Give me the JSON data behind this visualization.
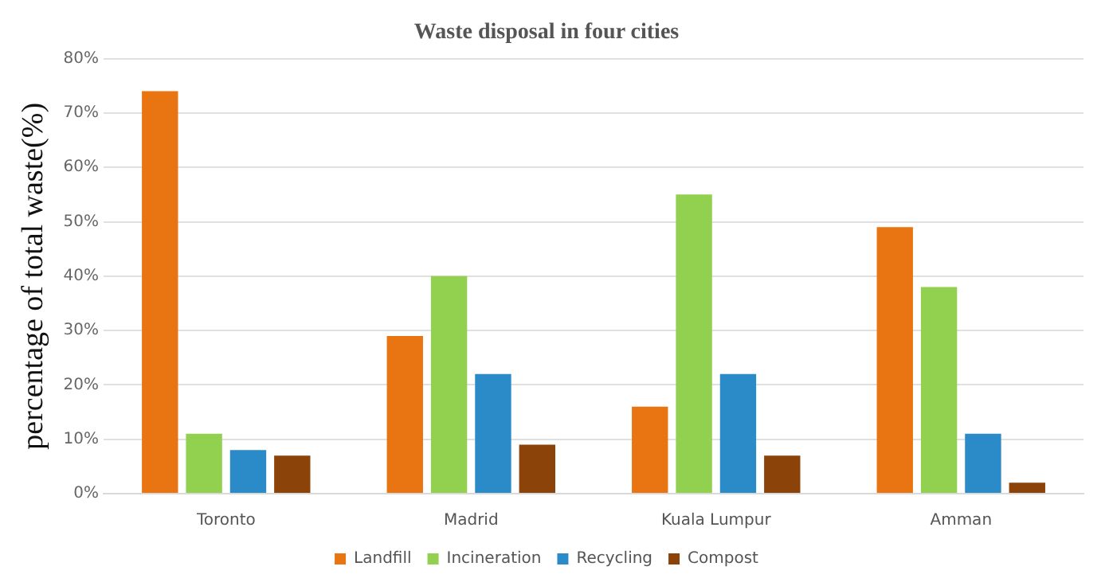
{
  "chart_data": {
    "type": "bar",
    "title": "Waste disposal in four cities",
    "ylabel": "percentage of total waste(%)",
    "categories": [
      "Toronto",
      "Madrid",
      "Kuala Lumpur",
      "Amman"
    ],
    "series": [
      {
        "name": "Landfill",
        "color": "#e87511",
        "values": [
          74,
          29,
          16,
          49
        ]
      },
      {
        "name": "Incineration",
        "color": "#92d050",
        "values": [
          11,
          40,
          55,
          38
        ]
      },
      {
        "name": "Recycling",
        "color": "#2b8bc8",
        "values": [
          8,
          22,
          22,
          11
        ]
      },
      {
        "name": "Compost",
        "color": "#8b4309",
        "values": [
          7,
          9,
          7,
          2
        ]
      }
    ],
    "ylim": [
      0,
      80
    ],
    "yticks": [
      {
        "value": 0,
        "label": "0%"
      },
      {
        "value": 10,
        "label": "10%"
      },
      {
        "value": 20,
        "label": "20%"
      },
      {
        "value": 30,
        "label": "30%"
      },
      {
        "value": 40,
        "label": "40%"
      },
      {
        "value": 50,
        "label": "50%"
      },
      {
        "value": 60,
        "label": "60%"
      },
      {
        "value": 70,
        "label": "70%"
      },
      {
        "value": 80,
        "label": "80%"
      }
    ],
    "grid": "y",
    "legend": "bottom"
  }
}
